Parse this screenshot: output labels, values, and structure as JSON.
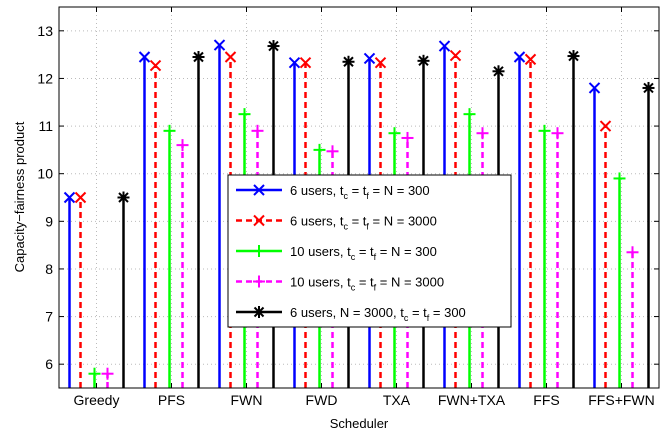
{
  "chart_data": {
    "type": "bar",
    "xlabel": "Scheduler",
    "ylabel": "Capacity−fairness product",
    "ylim": [
      5.5,
      13.5
    ],
    "yticks": [
      6,
      7,
      8,
      9,
      10,
      11,
      12,
      13
    ],
    "grid": true,
    "legend_position": "center-right",
    "categories": [
      "Greedy",
      "PFS",
      "FWN",
      "FWD",
      "TXA",
      "FWN+TXA",
      "FFS",
      "FFS+FWN"
    ],
    "series": [
      {
        "name": "6 users, t_c = t_f = N = 300",
        "label_parts": [
          "6 users, t",
          "c",
          " = t",
          "f",
          " = N = 300"
        ],
        "color": "#0000ff",
        "line": "solid",
        "marker": "x",
        "values": [
          9.5,
          12.45,
          12.7,
          12.33,
          12.42,
          12.68,
          12.45,
          11.8
        ]
      },
      {
        "name": "6 users, t_c = t_f = N = 3000",
        "label_parts": [
          "6 users, t",
          "c",
          " = t",
          "f",
          " = N = 3000"
        ],
        "color": "#ff0000",
        "line": "dashed",
        "marker": "x",
        "values": [
          9.5,
          12.27,
          12.45,
          12.33,
          12.33,
          12.48,
          12.4,
          11.0
        ]
      },
      {
        "name": "10 users, t_c = t_f = N = 300",
        "label_parts": [
          "10 users, t",
          "c",
          " = t",
          "f",
          " = N = 300"
        ],
        "color": "#00ff00",
        "line": "solid",
        "marker": "+",
        "values": [
          5.8,
          10.9,
          11.25,
          10.5,
          10.85,
          11.25,
          10.9,
          9.9
        ]
      },
      {
        "name": "10 users, t_c = t_f = N = 3000",
        "label_parts": [
          "10 users, t",
          "c",
          " = t",
          "f",
          " = N = 3000"
        ],
        "color": "#ff00ff",
        "line": "dashed",
        "marker": "+",
        "values": [
          5.8,
          10.6,
          10.9,
          10.47,
          10.75,
          10.85,
          10.85,
          8.35
        ]
      },
      {
        "name": "6 users, N = 3000, t_c = t_f = 300",
        "label_parts": [
          "6 users, N = 3000, t",
          "c",
          " = t",
          "f",
          " = 300"
        ],
        "color": "#000000",
        "line": "solid",
        "marker": "*",
        "values": [
          9.5,
          12.45,
          12.68,
          12.35,
          12.37,
          12.15,
          12.47,
          11.8
        ]
      }
    ]
  }
}
